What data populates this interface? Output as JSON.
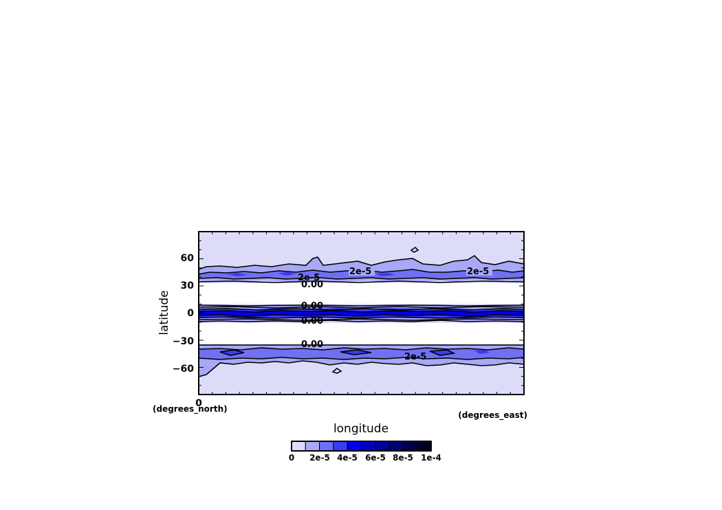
{
  "chart_data": {
    "type": "heatmap",
    "title": "",
    "xlabel": "longitude",
    "ylabel": "latitude",
    "x_units": "(degrees_east)",
    "y_units": "(degrees_north)",
    "xlim": [
      0,
      360
    ],
    "ylim": [
      -90,
      90
    ],
    "x_ticks": [
      "0"
    ],
    "y_ticks": [
      "60",
      "30",
      "0",
      "−30",
      "−60"
    ],
    "y_tick_values": [
      60,
      30,
      0,
      -30,
      -60
    ],
    "contour_labels": [
      "2e-5",
      "2e-5",
      "2e-5",
      "2e-5",
      "0.00",
      "0.00",
      "0.00",
      "0.00"
    ],
    "colorbar": {
      "tick_labels": [
        "0",
        "2e-5",
        "4e-5",
        "6e-5",
        "8e-5",
        "1e-4"
      ],
      "colors": [
        "#dcdcf8",
        "#a8a8f6",
        "#7070f2",
        "#3c3cf0",
        "#0000ee",
        "#0000c0",
        "#00009a",
        "#000072",
        "#000048",
        "#000026"
      ]
    },
    "field_bands": [
      {
        "lat_range": [
          55,
          90
        ],
        "level": "0-1e-5"
      },
      {
        "lat_range": [
          32,
          55
        ],
        "level": "1e-5-3e-5"
      },
      {
        "lat_range": [
          10,
          30
        ],
        "level": "0"
      },
      {
        "lat_range": [
          -8,
          8
        ],
        "level": "up to 1e-4"
      },
      {
        "lat_range": [
          -30,
          -10
        ],
        "level": "0"
      },
      {
        "lat_range": [
          -58,
          -32
        ],
        "level": "1e-5-3e-5"
      },
      {
        "lat_range": [
          -90,
          -58
        ],
        "level": "0-1e-5"
      }
    ]
  }
}
